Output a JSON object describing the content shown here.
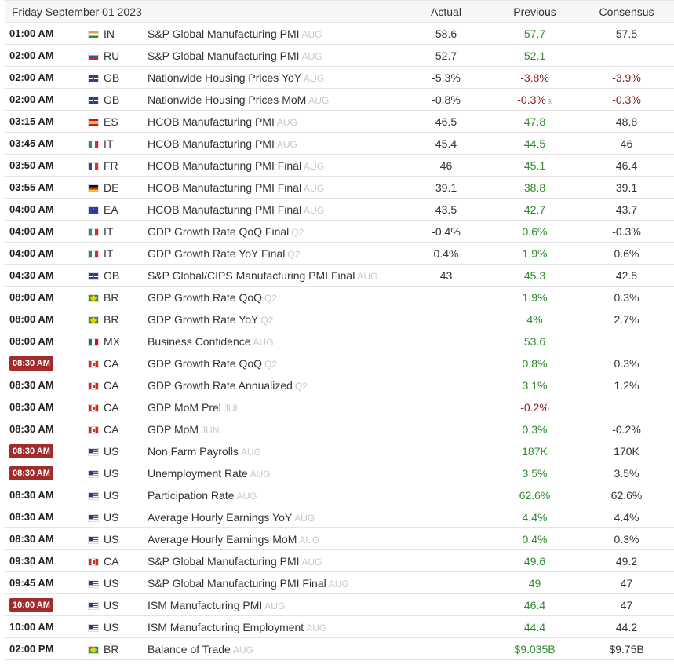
{
  "header": {
    "date": "Friday September 01 2023",
    "col_actual": "Actual",
    "col_previous": "Previous",
    "col_consensus": "Consensus"
  },
  "rows": [
    {
      "time": "01:00 AM",
      "highlight": false,
      "country": "IN",
      "event": "S&P Global Manufacturing PMI",
      "ref": "AUG",
      "actual": "58.6",
      "previous": "57.7",
      "prev_dir": "up",
      "consensus": "57.5",
      "cons_dir": "neutral"
    },
    {
      "time": "02:00 AM",
      "highlight": false,
      "country": "RU",
      "event": "S&P Global Manufacturing PMI",
      "ref": "AUG",
      "actual": "52.7",
      "previous": "52.1",
      "prev_dir": "up",
      "consensus": "",
      "cons_dir": "neutral"
    },
    {
      "time": "02:00 AM",
      "highlight": false,
      "country": "GB",
      "event": "Nationwide Housing Prices YoY",
      "ref": "AUG",
      "actual": "-5.3%",
      "previous": "-3.8%",
      "prev_dir": "down",
      "consensus": "-3.9%",
      "cons_dir": "down"
    },
    {
      "time": "02:00 AM",
      "highlight": false,
      "country": "GB",
      "event": "Nationwide Housing Prices MoM",
      "ref": "AUG",
      "actual": "-0.8%",
      "previous": "-0.3%",
      "prev_dir": "down",
      "revised": "®",
      "consensus": "-0.3%",
      "cons_dir": "down"
    },
    {
      "time": "03:15 AM",
      "highlight": false,
      "country": "ES",
      "event": "HCOB Manufacturing PMI",
      "ref": "AUG",
      "actual": "46.5",
      "previous": "47.8",
      "prev_dir": "up",
      "consensus": "48.8",
      "cons_dir": "neutral"
    },
    {
      "time": "03:45 AM",
      "highlight": false,
      "country": "IT",
      "event": "HCOB Manufacturing PMI",
      "ref": "AUG",
      "actual": "45.4",
      "previous": "44.5",
      "prev_dir": "up",
      "consensus": "46",
      "cons_dir": "neutral"
    },
    {
      "time": "03:50 AM",
      "highlight": false,
      "country": "FR",
      "event": "HCOB Manufacturing PMI Final",
      "ref": "AUG",
      "actual": "46",
      "previous": "45.1",
      "prev_dir": "up",
      "consensus": "46.4",
      "cons_dir": "neutral"
    },
    {
      "time": "03:55 AM",
      "highlight": false,
      "country": "DE",
      "event": "HCOB Manufacturing PMI Final",
      "ref": "AUG",
      "actual": "39.1",
      "previous": "38.8",
      "prev_dir": "up",
      "consensus": "39.1",
      "cons_dir": "neutral"
    },
    {
      "time": "04:00 AM",
      "highlight": false,
      "country": "EA",
      "event": "HCOB Manufacturing PMI Final",
      "ref": "AUG",
      "actual": "43.5",
      "previous": "42.7",
      "prev_dir": "up",
      "consensus": "43.7",
      "cons_dir": "neutral"
    },
    {
      "time": "04:00 AM",
      "highlight": false,
      "country": "IT",
      "event": "GDP Growth Rate QoQ Final",
      "ref": "Q2",
      "actual": "-0.4%",
      "previous": "0.6%",
      "prev_dir": "up",
      "consensus": "-0.3%",
      "cons_dir": "neutral"
    },
    {
      "time": "04:00 AM",
      "highlight": false,
      "country": "IT",
      "event": "GDP Growth Rate YoY Final",
      "ref": "Q2",
      "actual": "0.4%",
      "previous": "1.9%",
      "prev_dir": "up",
      "consensus": "0.6%",
      "cons_dir": "neutral"
    },
    {
      "time": "04:30 AM",
      "highlight": false,
      "country": "GB",
      "event": "S&P Global/CIPS Manufacturing PMI Final",
      "ref": "AUG",
      "actual": "43",
      "previous": "45.3",
      "prev_dir": "up",
      "consensus": "42.5",
      "cons_dir": "neutral"
    },
    {
      "time": "08:00 AM",
      "highlight": false,
      "country": "BR",
      "event": "GDP Growth Rate QoQ",
      "ref": "Q2",
      "actual": "",
      "previous": "1.9%",
      "prev_dir": "up",
      "consensus": "0.3%",
      "cons_dir": "neutral"
    },
    {
      "time": "08:00 AM",
      "highlight": false,
      "country": "BR",
      "event": "GDP Growth Rate YoY",
      "ref": "Q2",
      "actual": "",
      "previous": "4%",
      "prev_dir": "up",
      "consensus": "2.7%",
      "cons_dir": "neutral"
    },
    {
      "time": "08:00 AM",
      "highlight": false,
      "country": "MX",
      "event": "Business Confidence",
      "ref": "AUG",
      "actual": "",
      "previous": "53.6",
      "prev_dir": "up",
      "consensus": "",
      "cons_dir": "neutral"
    },
    {
      "time": "08:30 AM",
      "highlight": true,
      "country": "CA",
      "event": "GDP Growth Rate QoQ",
      "ref": "Q2",
      "actual": "",
      "previous": "0.8%",
      "prev_dir": "up",
      "consensus": "0.3%",
      "cons_dir": "neutral"
    },
    {
      "time": "08:30 AM",
      "highlight": false,
      "country": "CA",
      "event": "GDP Growth Rate Annualized",
      "ref": "Q2",
      "actual": "",
      "previous": "3.1%",
      "prev_dir": "up",
      "consensus": "1.2%",
      "cons_dir": "neutral"
    },
    {
      "time": "08:30 AM",
      "highlight": false,
      "country": "CA",
      "event": "GDP MoM Prel",
      "ref": "JUL",
      "actual": "",
      "previous": "-0.2%",
      "prev_dir": "down",
      "consensus": "",
      "cons_dir": "neutral"
    },
    {
      "time": "08:30 AM",
      "highlight": false,
      "country": "CA",
      "event": "GDP MoM",
      "ref": "JUN",
      "actual": "",
      "previous": "0.3%",
      "prev_dir": "up",
      "consensus": "-0.2%",
      "cons_dir": "neutral"
    },
    {
      "time": "08:30 AM",
      "highlight": true,
      "country": "US",
      "event": "Non Farm Payrolls",
      "ref": "AUG",
      "actual": "",
      "previous": "187K",
      "prev_dir": "up",
      "consensus": "170K",
      "cons_dir": "neutral"
    },
    {
      "time": "08:30 AM",
      "highlight": true,
      "country": "US",
      "event": "Unemployment Rate",
      "ref": "AUG",
      "actual": "",
      "previous": "3.5%",
      "prev_dir": "up",
      "consensus": "3.5%",
      "cons_dir": "neutral"
    },
    {
      "time": "08:30 AM",
      "highlight": false,
      "country": "US",
      "event": "Participation Rate",
      "ref": "AUG",
      "actual": "",
      "previous": "62.6%",
      "prev_dir": "up",
      "consensus": "62.6%",
      "cons_dir": "neutral"
    },
    {
      "time": "08:30 AM",
      "highlight": false,
      "country": "US",
      "event": "Average Hourly Earnings YoY",
      "ref": "AUG",
      "actual": "",
      "previous": "4.4%",
      "prev_dir": "up",
      "consensus": "4.4%",
      "cons_dir": "neutral"
    },
    {
      "time": "08:30 AM",
      "highlight": false,
      "country": "US",
      "event": "Average Hourly Earnings MoM",
      "ref": "AUG",
      "actual": "",
      "previous": "0.4%",
      "prev_dir": "up",
      "consensus": "0.3%",
      "cons_dir": "neutral"
    },
    {
      "time": "09:30 AM",
      "highlight": false,
      "country": "CA",
      "event": "S&P Global Manufacturing PMI",
      "ref": "AUG",
      "actual": "",
      "previous": "49.6",
      "prev_dir": "up",
      "consensus": "49.2",
      "cons_dir": "neutral"
    },
    {
      "time": "09:45 AM",
      "highlight": false,
      "country": "US",
      "event": "S&P Global Manufacturing PMI Final",
      "ref": "AUG",
      "actual": "",
      "previous": "49",
      "prev_dir": "up",
      "consensus": "47",
      "cons_dir": "neutral"
    },
    {
      "time": "10:00 AM",
      "highlight": true,
      "country": "US",
      "event": "ISM Manufacturing PMI",
      "ref": "AUG",
      "actual": "",
      "previous": "46.4",
      "prev_dir": "up",
      "consensus": "47",
      "cons_dir": "neutral"
    },
    {
      "time": "10:00 AM",
      "highlight": false,
      "country": "US",
      "event": "ISM Manufacturing Employment",
      "ref": "AUG",
      "actual": "",
      "previous": "44.4",
      "prev_dir": "up",
      "consensus": "44.2",
      "cons_dir": "neutral"
    },
    {
      "time": "02:00 PM",
      "highlight": false,
      "country": "BR",
      "event": "Balance of Trade",
      "ref": "AUG",
      "actual": "",
      "previous": "$9.035B",
      "prev_dir": "up",
      "consensus": "$9.75B",
      "cons_dir": "neutral"
    }
  ]
}
